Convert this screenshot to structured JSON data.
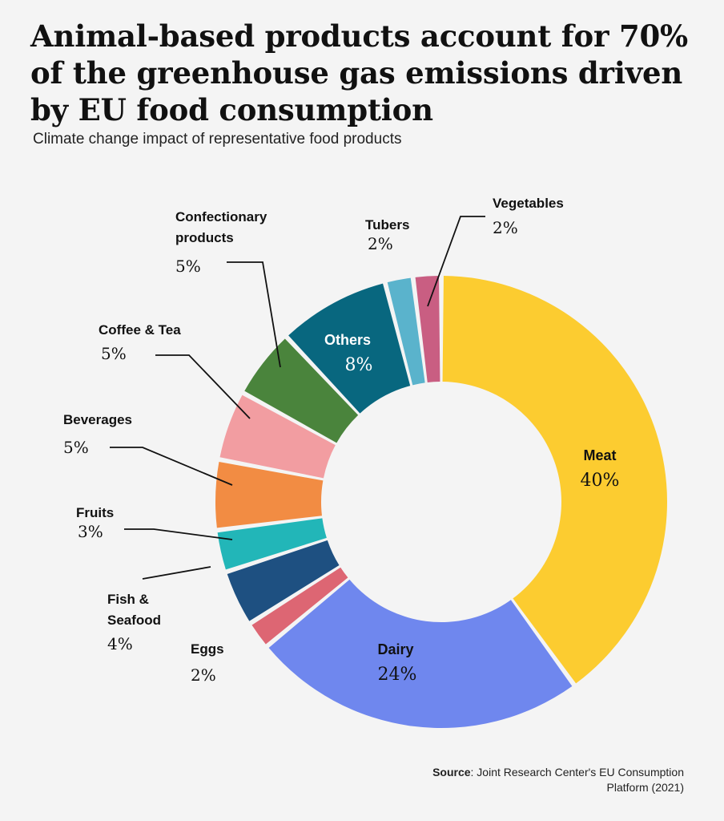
{
  "title": "Animal-based products account for 70% of the greenhouse gas emissions driven by EU food consumption",
  "subtitle": "Climate change impact of representative food products",
  "source": {
    "label": "Source",
    "text": ": Joint Research Center's EU Consumption Platform (2021)"
  },
  "chart_data": {
    "type": "pie",
    "title": "Animal-based products account for 70% of the greenhouse gas emissions driven by EU food consumption",
    "subtitle": "Climate change impact of representative food products",
    "unit": "%",
    "slices": [
      {
        "name": "Meat",
        "value": 40,
        "label": "40%",
        "color": "#fccc30"
      },
      {
        "name": "Dairy",
        "value": 24,
        "label": "24%",
        "color": "#6f87ee"
      },
      {
        "name": "Eggs",
        "value": 2,
        "label": "2%",
        "color": "#dd6673"
      },
      {
        "name": "Fish & Seafood",
        "value": 4,
        "label": "4%",
        "color": "#1e5081"
      },
      {
        "name": "Fruits",
        "value": 3,
        "label": "3%",
        "color": "#22b6b8"
      },
      {
        "name": "Beverages",
        "value": 5,
        "label": "5%",
        "color": "#f28c43"
      },
      {
        "name": "Coffee & Tea",
        "value": 5,
        "label": "5%",
        "color": "#f29da1"
      },
      {
        "name": "Confectionary products",
        "value": 5,
        "label": "5%",
        "color": "#4a843c"
      },
      {
        "name": "Others",
        "value": 8,
        "label": "8%",
        "color": "#08677f"
      },
      {
        "name": "Tubers",
        "value": 2,
        "label": "2%",
        "color": "#5ab3cc"
      },
      {
        "name": "Vegetables",
        "value": 2,
        "label": "2%",
        "color": "#c95e82"
      }
    ],
    "label_lines": {
      "meat": [
        "Meat"
      ],
      "dairy": [
        "Dairy"
      ],
      "eggs": [
        "Eggs"
      ],
      "fish": [
        "Fish &",
        "Seafood"
      ],
      "fruits": [
        "Fruits"
      ],
      "beverages": [
        "Beverages"
      ],
      "coffee": [
        "Coffee & Tea"
      ],
      "confectionary": [
        "Confectionary",
        "products"
      ],
      "others": [
        "Others"
      ],
      "tubers": [
        "Tubers"
      ],
      "vegetables": [
        "Vegetables"
      ]
    }
  }
}
